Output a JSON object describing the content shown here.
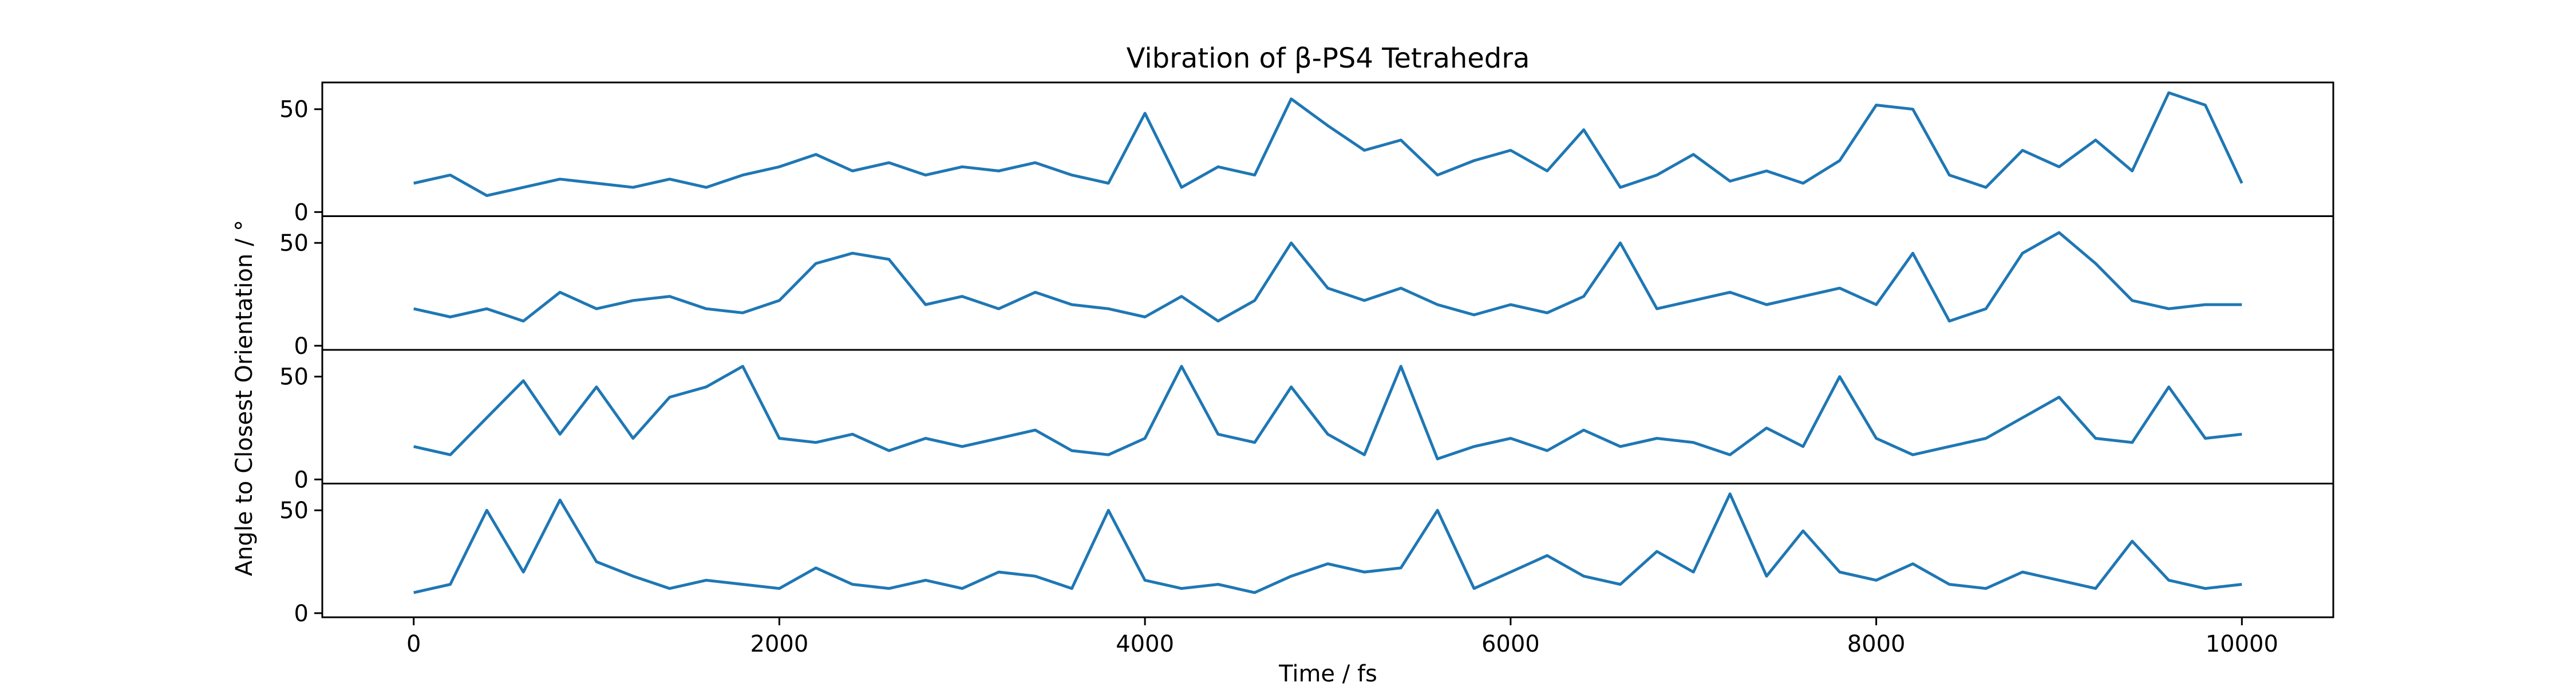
{
  "chart_data": {
    "type": "line",
    "title": "Vibration of β-PS4 Tetrahedra",
    "xlabel": "Time / fs",
    "ylabel": "Angle to Closest Orientation / °",
    "xlim": [
      -500,
      10500
    ],
    "ylim": [
      -2,
      63
    ],
    "x_ticks": [
      0,
      2000,
      4000,
      6000,
      8000,
      10000
    ],
    "y_ticks": [
      0,
      50
    ],
    "line_color": "#1f77b4",
    "grid": false,
    "legend": "none",
    "series": [
      {
        "x": [
          0,
          200,
          400,
          600,
          800,
          1000,
          1200,
          1400,
          1600,
          1800,
          2000,
          2200,
          2400,
          2600,
          2800,
          3000,
          3200,
          3400,
          3600,
          3800,
          4000,
          4200,
          4400,
          4600,
          4800,
          5000,
          5200,
          5400,
          5600,
          5800,
          6000,
          6200,
          6400,
          6600,
          6800,
          7000,
          7200,
          7400,
          7600,
          7800,
          8000,
          8200,
          8400,
          8600,
          8800,
          9000,
          9200,
          9400,
          9600,
          9800,
          10000
        ],
        "y": [
          14,
          18,
          8,
          12,
          16,
          14,
          12,
          16,
          12,
          18,
          22,
          28,
          20,
          24,
          18,
          22,
          20,
          24,
          18,
          14,
          48,
          12,
          22,
          18,
          55,
          42,
          30,
          35,
          18,
          25,
          30,
          20,
          40,
          12,
          18,
          28,
          15,
          20,
          14,
          25,
          52,
          50,
          18,
          12,
          30,
          22,
          35,
          20,
          58,
          52,
          14
        ]
      },
      {
        "x": [
          0,
          200,
          400,
          600,
          800,
          1000,
          1200,
          1400,
          1600,
          1800,
          2000,
          2200,
          2400,
          2600,
          2800,
          3000,
          3200,
          3400,
          3600,
          3800,
          4000,
          4200,
          4400,
          4600,
          4800,
          5000,
          5200,
          5400,
          5600,
          5800,
          6000,
          6200,
          6400,
          6600,
          6800,
          7000,
          7200,
          7400,
          7600,
          7800,
          8000,
          8200,
          8400,
          8600,
          8800,
          9000,
          9200,
          9400,
          9600,
          9800,
          10000
        ],
        "y": [
          18,
          14,
          18,
          12,
          26,
          18,
          22,
          24,
          18,
          16,
          22,
          40,
          45,
          42,
          20,
          24,
          18,
          26,
          20,
          18,
          14,
          24,
          12,
          22,
          50,
          28,
          22,
          28,
          20,
          15,
          20,
          16,
          24,
          50,
          18,
          22,
          26,
          20,
          24,
          28,
          20,
          45,
          12,
          18,
          45,
          55,
          40,
          22,
          18,
          20,
          20
        ]
      },
      {
        "x": [
          0,
          200,
          400,
          600,
          800,
          1000,
          1200,
          1400,
          1600,
          1800,
          2000,
          2200,
          2400,
          2600,
          2800,
          3000,
          3200,
          3400,
          3600,
          3800,
          4000,
          4200,
          4400,
          4600,
          4800,
          5000,
          5200,
          5400,
          5600,
          5800,
          6000,
          6200,
          6400,
          6600,
          6800,
          7000,
          7200,
          7400,
          7600,
          7800,
          8000,
          8200,
          8400,
          8600,
          8800,
          9000,
          9200,
          9400,
          9600,
          9800,
          10000
        ],
        "y": [
          16,
          12,
          30,
          48,
          22,
          45,
          20,
          40,
          45,
          55,
          20,
          18,
          22,
          14,
          20,
          16,
          20,
          24,
          14,
          12,
          20,
          55,
          22,
          18,
          45,
          22,
          12,
          55,
          10,
          16,
          20,
          14,
          24,
          16,
          20,
          18,
          12,
          25,
          16,
          50,
          20,
          12,
          16,
          20,
          30,
          40,
          20,
          18,
          45,
          20,
          22
        ]
      },
      {
        "x": [
          0,
          200,
          400,
          600,
          800,
          1000,
          1200,
          1400,
          1600,
          1800,
          2000,
          2200,
          2400,
          2600,
          2800,
          3000,
          3200,
          3400,
          3600,
          3800,
          4000,
          4200,
          4400,
          4600,
          4800,
          5000,
          5200,
          5400,
          5600,
          5800,
          6000,
          6200,
          6400,
          6600,
          6800,
          7000,
          7200,
          7400,
          7600,
          7800,
          8000,
          8200,
          8400,
          8600,
          8800,
          9000,
          9200,
          9400,
          9600,
          9800,
          10000
        ],
        "y": [
          10,
          14,
          50,
          20,
          55,
          25,
          18,
          12,
          16,
          14,
          12,
          22,
          14,
          12,
          16,
          12,
          20,
          18,
          12,
          50,
          16,
          12,
          14,
          10,
          18,
          24,
          20,
          22,
          50,
          12,
          20,
          28,
          18,
          14,
          30,
          20,
          58,
          18,
          40,
          20,
          16,
          24,
          14,
          12,
          20,
          16,
          12,
          35,
          16,
          12,
          14
        ]
      }
    ]
  }
}
